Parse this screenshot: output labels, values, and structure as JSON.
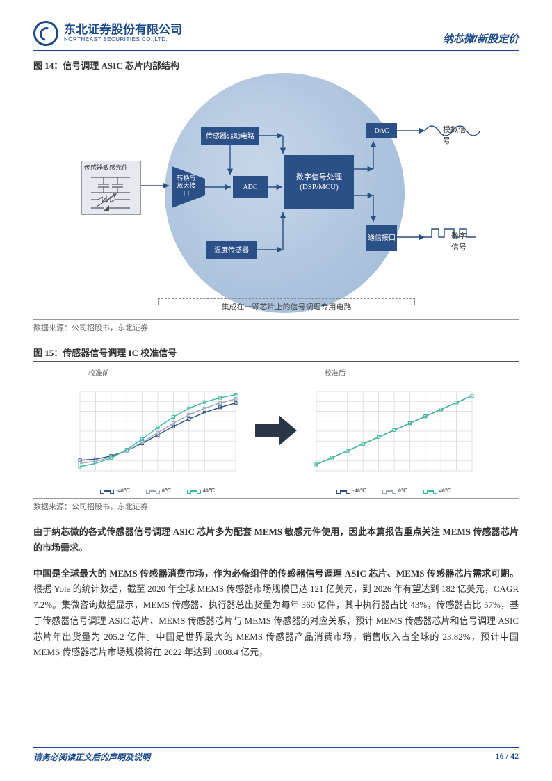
{
  "header": {
    "brand_cn": "东北证券股份有限公司",
    "brand_en": "NORTHEAST SECURITIES CO.,LTD.",
    "right": "纳芯微/新股定价"
  },
  "fig14": {
    "label_prefix": "图 14：",
    "label_text": "信号调理 ASIC 芯片内部结构",
    "boxes": {
      "sensor": "传感器敏感元件",
      "driver": "传感器驱动电路",
      "convert": "转换与放大接口",
      "adc": "ADC",
      "dsp_l1": "数字信号处理",
      "dsp_l2": "(DSP/MCU)",
      "temp": "温度传感器",
      "dac": "DAC",
      "comm": "通信接口"
    },
    "out_analog": "模拟信号",
    "out_digital": "数字信号",
    "caption": "集成在一颗芯片上的信号调理专用电路",
    "colors": {
      "block": "#2b4f87",
      "circle_edge": "#5683b8",
      "sensor_bg": "#e6eaf0"
    },
    "source": "数据来源：公司招股书，东北证券"
  },
  "fig15": {
    "label_prefix": "图 15：",
    "label_text": "传感器信号调理 IC 校准信号",
    "left_title": "校准前",
    "right_title": "校准后",
    "legend": [
      "-40℃",
      "0℃",
      "40℃"
    ],
    "legend_colors": [
      "#2b4f87",
      "#9aa7b8",
      "#3fb8a0"
    ],
    "grid_color": "#d9d9d9",
    "left_series": {
      "s1": [
        10,
        12,
        18,
        28,
        42,
        58,
        74,
        88,
        100,
        110,
        118
      ],
      "s2": [
        4,
        8,
        16,
        28,
        44,
        62,
        80,
        96,
        108,
        118,
        126
      ],
      "s3": [
        -2,
        4,
        14,
        30,
        50,
        72,
        92,
        108,
        120,
        128,
        134
      ]
    },
    "right_series": [
      2,
      15,
      28,
      41,
      54,
      67,
      80,
      93,
      106,
      119,
      132
    ],
    "arrow_color": "#2b3648",
    "source": "数据来源：公司招股书，东北证券"
  },
  "body": {
    "p1_bold": "由于纳芯微的各式传感器信号调理 ASIC 芯片多为配套 MEMS 敏感元件使用，因此本篇报告重点关注 MEMS 传感器芯片的市场需求。",
    "p2_bold": "中国是全球最大的 MEMS 传感器消费市场，作为必备组件的传感器信号调理 ASIC 芯片、MEMS 传感器芯片需求可期。",
    "p2_rest": "根据 Yole 的统计数据，截至 2020 年全球 MEMS 传感器市场规模已达 121 亿美元，到 2026 年有望达到 182 亿美元，CAGR 7.2%。集微咨询数据显示，MEMS 传感器、执行器总出货量为每年 360 亿件，其中执行器占比 43%，传感器占比 57%，基于传感器信号调理 ASIC 芯片、MEMS 传感器芯片与 MEMS 传感器的对应关系，预计 MEMS 传感器芯片和信号调理 ASIC 芯片年出货量为 205.2 亿件。中国是世界最大的 MEMS 传感器产品消费市场，销售收入占全球的 23.82%，预计中国 MEMS 传感器芯片市场规模将在 2022 年达到 1008.4 亿元，"
  },
  "footer": {
    "disclaimer": "请务必阅读正文后的声明及说明",
    "page": "16 / 42"
  }
}
